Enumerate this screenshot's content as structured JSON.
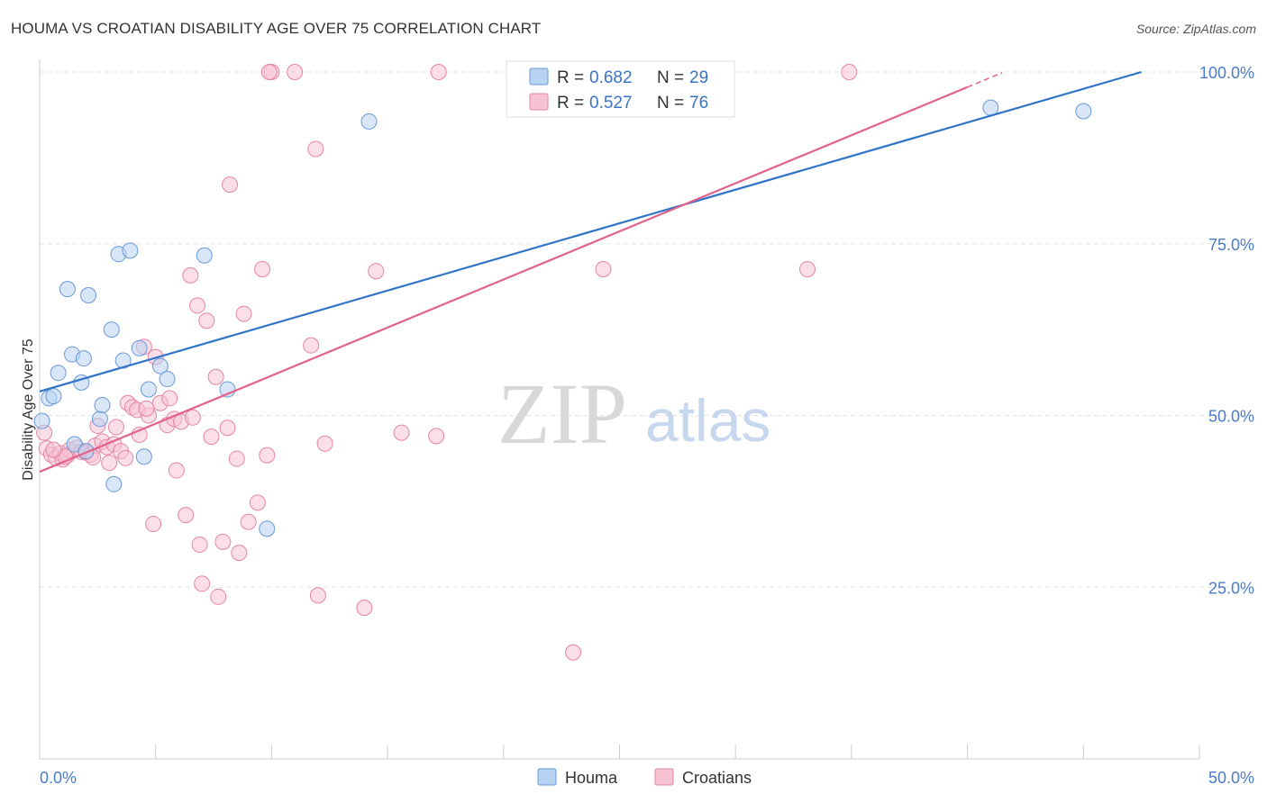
{
  "title": "HOUMA VS CROATIAN DISABILITY AGE OVER 75 CORRELATION CHART",
  "source": "Source: ZipAtlas.com",
  "watermark": {
    "zip": "ZIP",
    "atlas": "atlas"
  },
  "colors": {
    "houma_fill": "#b8d2f3",
    "houma_stroke": "#6a9ad8",
    "houma_line": "#2f74c9",
    "croatians_fill": "#f7c3d3",
    "croatians_stroke": "#e486a6",
    "croatians_line": "#e2628c",
    "grid": "#e3e3e3",
    "tick_text": "#4a7cc9"
  },
  "legend": {
    "r_label": "R = ",
    "n_label": "N = ",
    "houma": {
      "r": "0.682",
      "n": "29"
    },
    "croatians": {
      "r": "0.527",
      "n": "76"
    }
  },
  "chart_data": {
    "type": "scatter",
    "title": "HOUMA VS CROATIAN DISABILITY AGE OVER 75 CORRELATION CHART",
    "xlabel": "",
    "ylabel": "Disability Age Over 75",
    "xlim": [
      0,
      50
    ],
    "ylim": [
      0,
      102
    ],
    "x_tick_labels": [
      "0.0%",
      "50.0%"
    ],
    "y_ticks": [
      25,
      50,
      75,
      100
    ],
    "y_tick_labels": [
      "25.0%",
      "50.0%",
      "75.0%",
      "100.0%"
    ],
    "grid": true,
    "legend_position": "top-center",
    "series": [
      {
        "name": "Houma",
        "trend": {
          "x0": 0,
          "y0": 53.5,
          "x1": 47.5,
          "y1": 100
        },
        "points": [
          [
            0.1,
            49.2
          ],
          [
            0.4,
            52.5
          ],
          [
            0.6,
            52.8
          ],
          [
            0.8,
            56.2
          ],
          [
            1.2,
            68.4
          ],
          [
            1.4,
            58.9
          ],
          [
            1.8,
            54.8
          ],
          [
            1.9,
            58.3
          ],
          [
            2.1,
            67.5
          ],
          [
            2.6,
            49.5
          ],
          [
            2.7,
            51.5
          ],
          [
            3.1,
            62.5
          ],
          [
            3.4,
            73.5
          ],
          [
            3.6,
            58.0
          ],
          [
            3.9,
            74.0
          ],
          [
            4.3,
            59.8
          ],
          [
            4.5,
            44.0
          ],
          [
            4.7,
            53.8
          ],
          [
            5.2,
            57.2
          ],
          [
            5.5,
            55.3
          ],
          [
            7.1,
            73.3
          ],
          [
            8.1,
            53.8
          ],
          [
            9.8,
            33.5
          ],
          [
            14.2,
            92.8
          ],
          [
            1.5,
            45.8
          ],
          [
            3.2,
            40.0
          ],
          [
            41.0,
            94.8
          ],
          [
            45.0,
            94.3
          ],
          [
            2.0,
            44.8
          ]
        ]
      },
      {
        "name": "Croatians",
        "trend": {
          "x0": 0,
          "y0": 41.8,
          "x1": 40.0,
          "y1": 97.8
        },
        "points": [
          [
            0.2,
            47.5
          ],
          [
            0.3,
            45.2
          ],
          [
            0.5,
            44.3
          ],
          [
            0.7,
            43.8
          ],
          [
            0.9,
            44.5
          ],
          [
            1.0,
            43.6
          ],
          [
            1.2,
            44.2
          ],
          [
            1.3,
            45.0
          ],
          [
            1.6,
            45.3
          ],
          [
            1.8,
            44.7
          ],
          [
            2.0,
            44.6
          ],
          [
            2.2,
            44.3
          ],
          [
            2.4,
            45.6
          ],
          [
            2.5,
            48.5
          ],
          [
            2.7,
            46.2
          ],
          [
            2.9,
            45.4
          ],
          [
            3.0,
            43.1
          ],
          [
            3.2,
            45.8
          ],
          [
            3.3,
            48.3
          ],
          [
            3.5,
            44.8
          ],
          [
            3.7,
            43.8
          ],
          [
            3.8,
            51.8
          ],
          [
            4.0,
            51.2
          ],
          [
            4.2,
            50.8
          ],
          [
            4.3,
            47.2
          ],
          [
            4.5,
            60.0
          ],
          [
            4.7,
            50.0
          ],
          [
            4.9,
            34.2
          ],
          [
            5.0,
            58.5
          ],
          [
            5.2,
            51.8
          ],
          [
            5.5,
            48.6
          ],
          [
            5.6,
            52.5
          ],
          [
            5.8,
            49.5
          ],
          [
            5.9,
            42.0
          ],
          [
            6.1,
            49.1
          ],
          [
            6.3,
            35.5
          ],
          [
            6.5,
            70.4
          ],
          [
            6.6,
            49.7
          ],
          [
            6.8,
            66.0
          ],
          [
            6.9,
            31.2
          ],
          [
            7.0,
            25.5
          ],
          [
            7.2,
            63.8
          ],
          [
            7.4,
            46.9
          ],
          [
            7.6,
            55.6
          ],
          [
            7.7,
            23.6
          ],
          [
            7.9,
            31.6
          ],
          [
            8.1,
            48.2
          ],
          [
            8.2,
            83.6
          ],
          [
            8.5,
            43.7
          ],
          [
            8.6,
            30.0
          ],
          [
            8.8,
            64.8
          ],
          [
            9.0,
            34.5
          ],
          [
            9.4,
            37.3
          ],
          [
            9.6,
            71.3
          ],
          [
            9.8,
            44.2
          ],
          [
            10.0,
            100.0
          ],
          [
            11.0,
            100.0
          ],
          [
            11.7,
            60.2
          ],
          [
            11.9,
            88.8
          ],
          [
            12.0,
            23.8
          ],
          [
            12.3,
            45.9
          ],
          [
            14.0,
            22.0
          ],
          [
            14.5,
            71.0
          ],
          [
            15.6,
            47.5
          ],
          [
            17.1,
            47.0
          ],
          [
            17.2,
            100.0
          ],
          [
            23.0,
            15.5
          ],
          [
            24.3,
            71.3
          ],
          [
            26.5,
            100.0
          ],
          [
            33.1,
            71.3
          ],
          [
            34.9,
            100.0
          ],
          [
            9.9,
            100.0
          ],
          [
            1.1,
            44.0
          ],
          [
            0.6,
            45.0
          ],
          [
            2.3,
            43.9
          ],
          [
            4.6,
            51.0
          ]
        ]
      }
    ]
  }
}
